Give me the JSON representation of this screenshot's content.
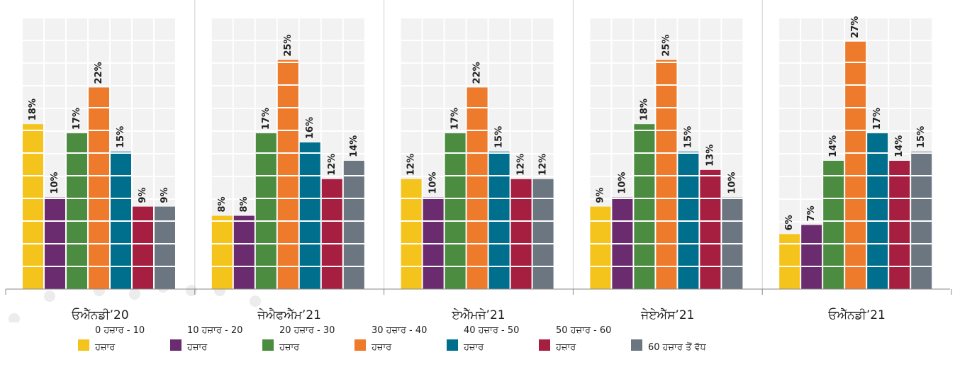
{
  "chart_data": {
    "type": "bar",
    "categories": [
      "ਓਐੱਨਡੀ’20",
      "ਜੇਐਫਐੱਮ’21",
      "ਏਐੱਮਜੇ’21",
      "ਜੇਏਐੱਸ’21",
      "ਓਐੱਨਡੀ’21"
    ],
    "ylim": [
      0,
      30
    ],
    "series": [
      {
        "name": "0 ਹਜ਼ਾਰ - 10 ਹਜ਼ਾਰ",
        "color": "#f5c41c",
        "values": [
          18,
          8,
          12,
          9,
          6
        ],
        "value_labels": [
          "18%",
          "8%",
          "12%",
          "9%",
          "6%"
        ]
      },
      {
        "name": "10 ਹਜ਼ਾਰ - 20 ਹਜ਼ਾਰ",
        "color": "#6a2c6e",
        "values": [
          10,
          8,
          10,
          10,
          7
        ],
        "value_labels": [
          "10%",
          "8%",
          "10%",
          "10%",
          "7%"
        ]
      },
      {
        "name": "20 ਹਜ਼ਾਰ - 30 ਹਜ਼ਾਰ",
        "color": "#4b8c40",
        "values": [
          17,
          17,
          17,
          18,
          14
        ],
        "value_labels": [
          "17%",
          "17%",
          "17%",
          "18%",
          "14%"
        ]
      },
      {
        "name": "30 ਹਜ਼ਾਰ - 40 ਹਜ਼ਾਰ",
        "color": "#ee7a2b",
        "values": [
          22,
          25,
          22,
          25,
          27
        ],
        "value_labels": [
          "22%",
          "25%",
          "22%",
          "25%",
          "27%"
        ]
      },
      {
        "name": "40 ਹਜ਼ਾਰ - 50 ਹਜ਼ਾਰ",
        "color": "#006f8e",
        "values": [
          15,
          16,
          15,
          15,
          17
        ],
        "value_labels": [
          "15%",
          "16%",
          "15%",
          "15%",
          "17%"
        ]
      },
      {
        "name": "50 ਹਜ਼ਾਰ - 60 ਹਜ਼ਾਰ",
        "color": "#a61f41",
        "values": [
          9,
          12,
          12,
          13,
          14
        ],
        "value_labels": [
          "9%",
          "12%",
          "12%",
          "13%",
          "14%"
        ]
      },
      {
        "name": "60 ਹਜ਼ਾਰ ਤੋਂ ਵੱਧ",
        "color": "#6b7680",
        "values": [
          9,
          14,
          12,
          10,
          15
        ],
        "value_labels": [
          "9%",
          "14%",
          "12%",
          "10%",
          "15%"
        ]
      }
    ]
  }
}
